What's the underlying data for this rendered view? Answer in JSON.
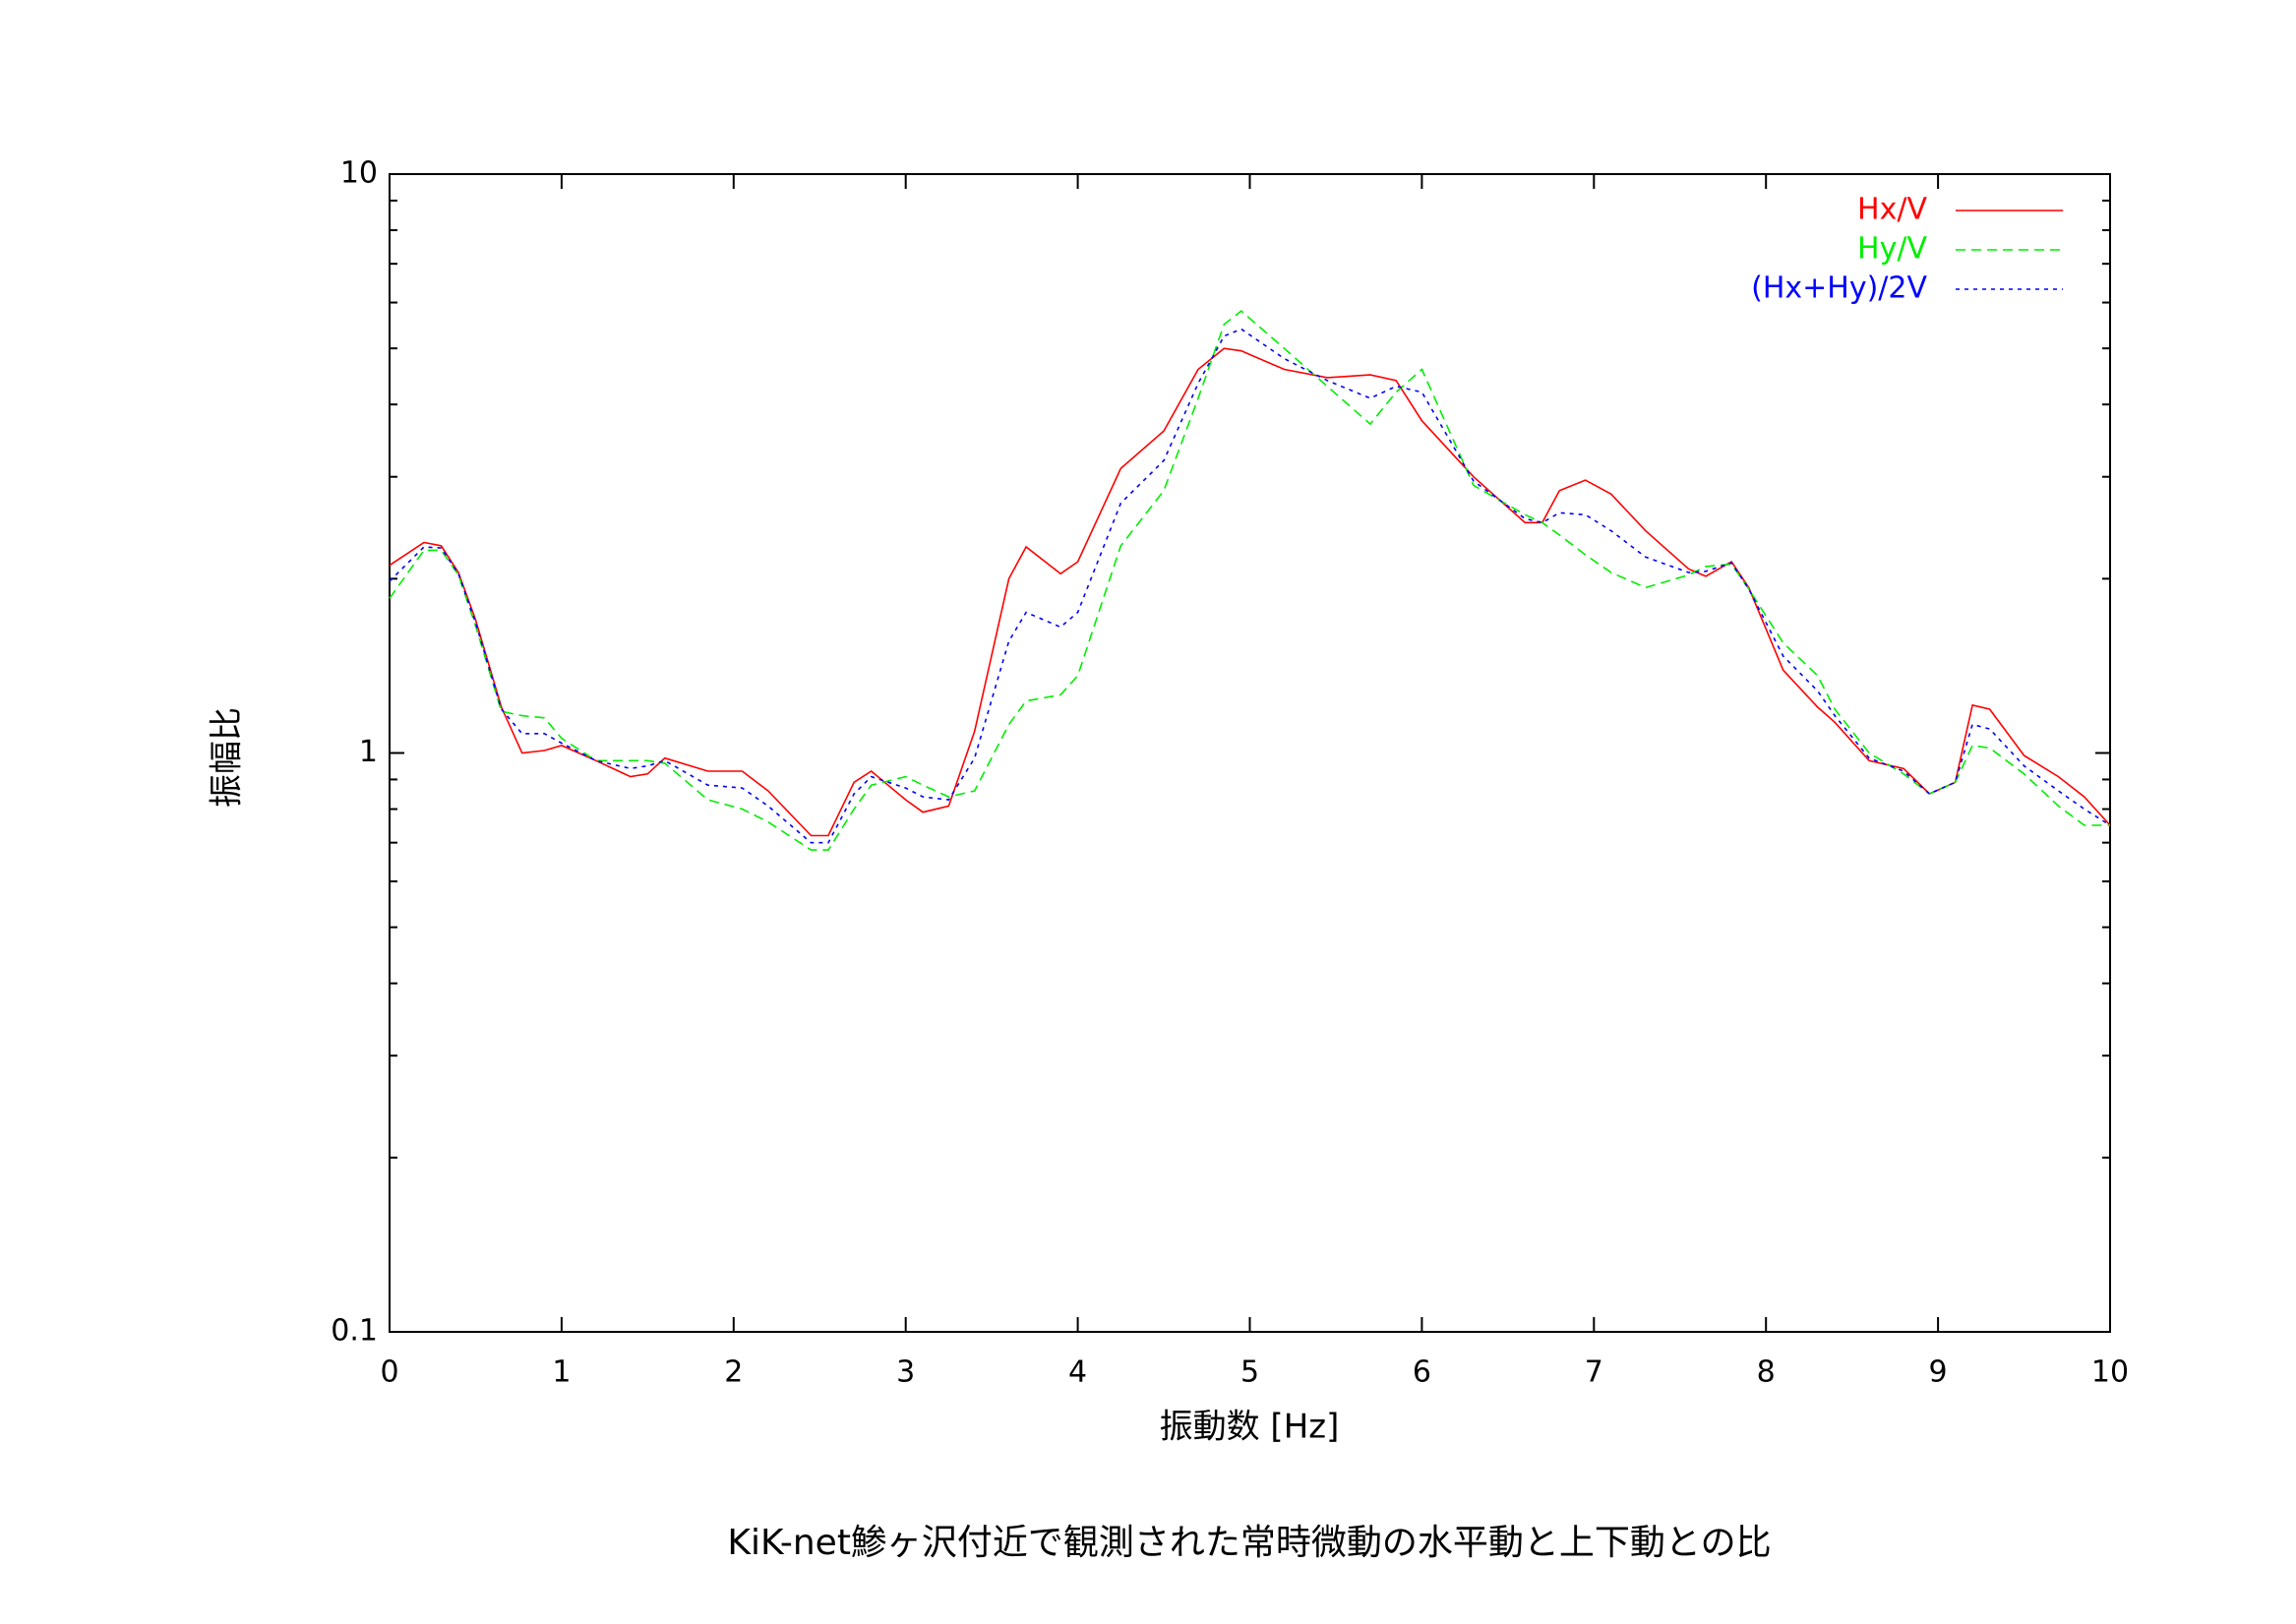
{
  "chart_data": {
    "type": "line",
    "title": "KiK-net鯵ヶ沢付近で観測された常時微動の水平動と上下動との比",
    "x_label": "振動数 [Hz]",
    "y_label": "振幅比",
    "x": [
      0,
      0.2,
      0.3,
      0.4,
      0.5,
      0.65,
      0.77,
      0.9,
      1.0,
      1.2,
      1.4,
      1.5,
      1.6,
      1.85,
      2.05,
      2.2,
      2.45,
      2.55,
      2.7,
      2.8,
      3.0,
      3.1,
      3.25,
      3.4,
      3.6,
      3.7,
      3.9,
      4.0,
      4.25,
      4.5,
      4.7,
      4.85,
      4.95,
      5.2,
      5.45,
      5.7,
      5.85,
      6.0,
      6.3,
      6.6,
      6.7,
      6.8,
      6.95,
      7.1,
      7.3,
      7.55,
      7.65,
      7.8,
      7.9,
      8.1,
      8.3,
      8.4,
      8.6,
      8.8,
      8.95,
      9.1,
      9.2,
      9.3,
      9.5,
      9.7,
      9.85,
      10
    ],
    "series": [
      {
        "name": "Hx/V",
        "color": "#ff0000",
        "dash": "none",
        "values": [
          2.11,
          2.31,
          2.28,
          2.05,
          1.7,
          1.2,
          1.0,
          1.01,
          1.03,
          0.97,
          0.91,
          0.92,
          0.98,
          0.93,
          0.93,
          0.86,
          0.72,
          0.72,
          0.89,
          0.93,
          0.83,
          0.79,
          0.81,
          1.09,
          2.0,
          2.27,
          2.04,
          2.14,
          3.1,
          3.6,
          4.6,
          5.0,
          4.95,
          4.6,
          4.45,
          4.5,
          4.4,
          3.75,
          3.0,
          2.5,
          2.5,
          2.84,
          2.96,
          2.8,
          2.42,
          2.08,
          2.02,
          2.14,
          1.93,
          1.39,
          1.2,
          1.13,
          0.97,
          0.94,
          0.85,
          0.89,
          1.21,
          1.19,
          0.99,
          0.91,
          0.84,
          0.75
        ]
      },
      {
        "name": "Hy/V",
        "color": "#00ee00",
        "dash": "10,6",
        "values": [
          1.85,
          2.24,
          2.24,
          2.03,
          1.66,
          1.18,
          1.16,
          1.15,
          1.06,
          0.97,
          0.97,
          0.97,
          0.96,
          0.83,
          0.8,
          0.76,
          0.68,
          0.68,
          0.8,
          0.88,
          0.91,
          0.88,
          0.84,
          0.86,
          1.12,
          1.23,
          1.26,
          1.36,
          2.28,
          2.84,
          4.1,
          5.5,
          5.8,
          5.0,
          4.3,
          3.7,
          4.2,
          4.6,
          2.9,
          2.58,
          2.5,
          2.38,
          2.2,
          2.05,
          1.93,
          2.03,
          2.1,
          2.12,
          1.92,
          1.55,
          1.36,
          1.19,
          1.0,
          0.92,
          0.85,
          0.89,
          1.03,
          1.02,
          0.92,
          0.81,
          0.75,
          0.75
        ]
      },
      {
        "name": "(Hx+Hy)/2V",
        "color": "#0000ff",
        "dash": "4,5",
        "values": [
          1.98,
          2.27,
          2.26,
          2.04,
          1.68,
          1.19,
          1.08,
          1.08,
          1.04,
          0.97,
          0.94,
          0.95,
          0.97,
          0.88,
          0.87,
          0.81,
          0.7,
          0.7,
          0.85,
          0.91,
          0.87,
          0.84,
          0.83,
          0.98,
          1.56,
          1.75,
          1.65,
          1.75,
          2.7,
          3.2,
          4.35,
          5.25,
          5.4,
          4.8,
          4.4,
          4.1,
          4.3,
          4.2,
          2.95,
          2.54,
          2.5,
          2.6,
          2.58,
          2.42,
          2.18,
          2.05,
          2.06,
          2.13,
          1.92,
          1.47,
          1.28,
          1.16,
          0.98,
          0.93,
          0.85,
          0.89,
          1.12,
          1.1,
          0.95,
          0.86,
          0.8,
          0.75
        ]
      }
    ],
    "xlim": [
      0,
      10
    ],
    "xticks": [
      0,
      1,
      2,
      3,
      4,
      5,
      6,
      7,
      8,
      9,
      10
    ],
    "ylim": [
      0.1,
      10
    ],
    "yticks": [
      0.1,
      1,
      10
    ],
    "y_minor_ticks": [
      0.2,
      0.3,
      0.4,
      0.5,
      0.6,
      0.7,
      0.8,
      0.9,
      2,
      3,
      4,
      5,
      6,
      7,
      8,
      9
    ],
    "log_y": true,
    "grid": false,
    "legend": "top-right"
  }
}
